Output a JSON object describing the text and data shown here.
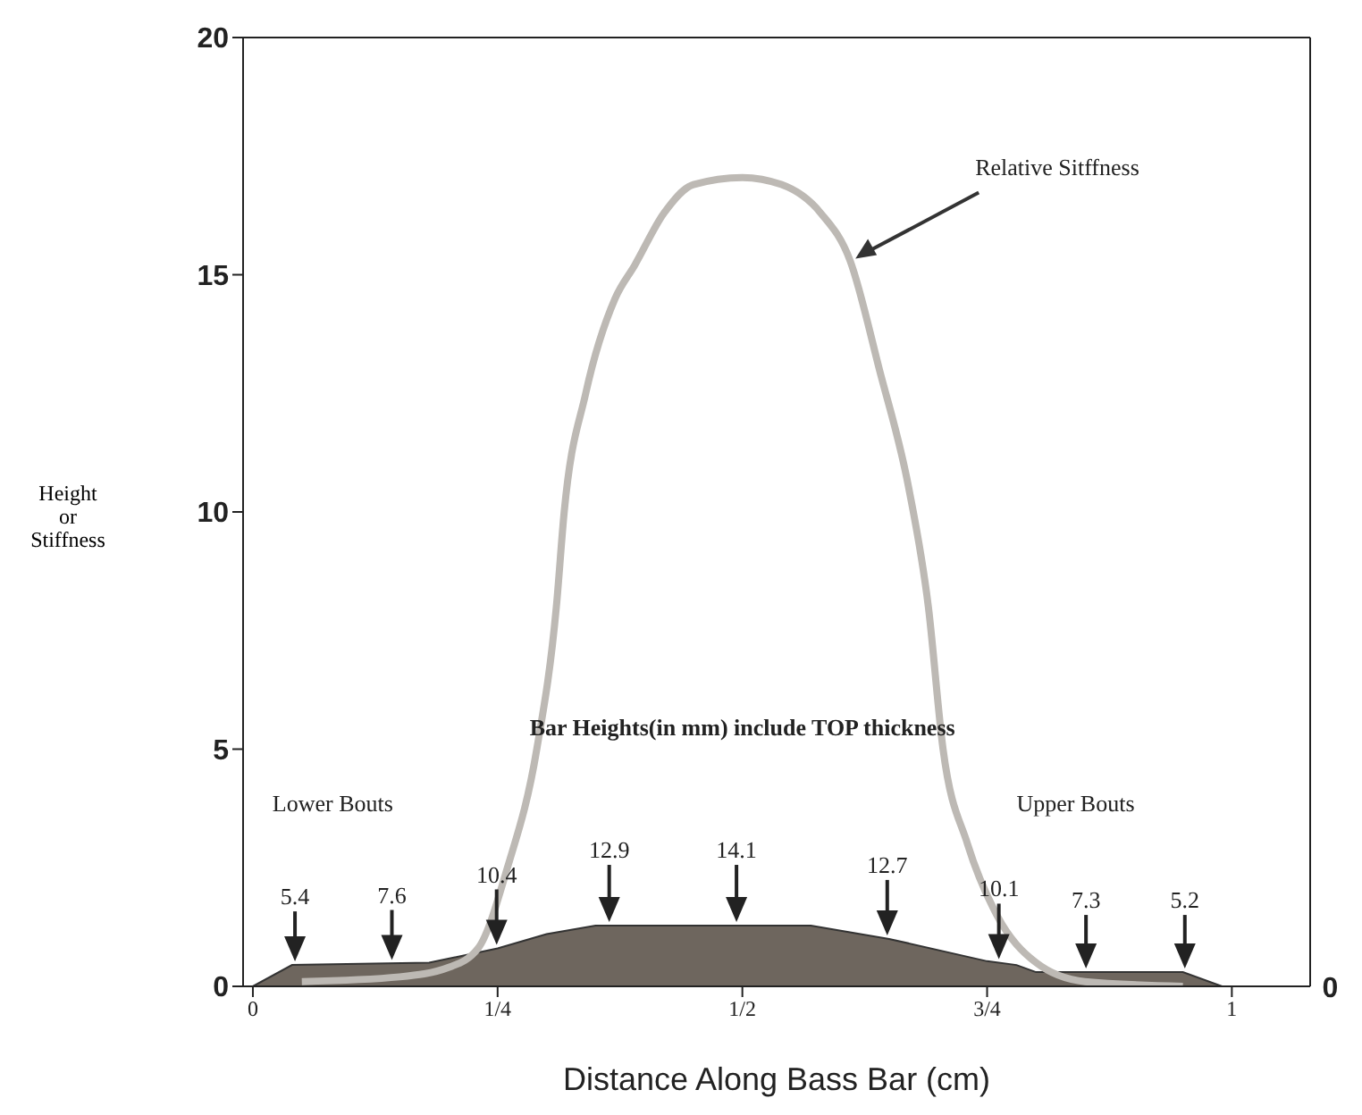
{
  "chart_data": {
    "type": "line",
    "xlabel": "Distance Along Bass Bar (cm)",
    "ylabel": "Height or Stiffness",
    "xlim": [
      -0.01,
      1.08
    ],
    "xticks": [
      0,
      {
        "value": 0.25,
        "label": "1/4"
      },
      {
        "value": 0.5,
        "label": "1/2"
      },
      {
        "value": 0.75,
        "label": "3/4"
      },
      1
    ],
    "ylim": [
      0,
      20
    ],
    "yticks": [
      0,
      5,
      10,
      15,
      20
    ],
    "series": [
      {
        "type": "area",
        "color": "#6e665e",
        "x": [
          0,
          0.04,
          0.18,
          0.25,
          0.3,
          0.35,
          0.57,
          0.65,
          0.75,
          0.78,
          0.8,
          0.95,
          0.99
        ],
        "values": [
          0,
          0.45,
          0.5,
          0.8,
          1.1,
          1.28,
          1.28,
          1.0,
          0.53,
          0.45,
          0.3,
          0.3,
          0
        ]
      },
      {
        "name": "Relative Sitffness",
        "color": "#bdb9b4",
        "x": [
          0.05,
          0.15,
          0.2,
          0.23,
          0.26,
          0.29,
          0.31,
          0.318,
          0.34,
          0.37,
          0.39,
          0.42,
          0.45,
          0.5,
          0.54,
          0.58,
          0.61,
          0.64,
          0.67,
          0.69,
          0.705,
          0.73,
          0.76,
          0.8,
          0.85,
          0.95
        ],
        "values": [
          0.1,
          0.2,
          0.4,
          0.8,
          2.5,
          5,
          8,
          10,
          12.5,
          14.5,
          15.2,
          16.3,
          16.9,
          17.05,
          16.9,
          16.3,
          15.3,
          13,
          10.5,
          8,
          5,
          3,
          1.5,
          0.5,
          0.1,
          0
        ]
      }
    ],
    "annotations": [
      "Bar Heights(in mm) include TOP thickness",
      "Lower Bouts",
      "Upper Bouts",
      "0",
      {
        "text": "5.4",
        "x": 0.043,
        "y": 0.45
      },
      {
        "text": "7.6",
        "x": 0.142,
        "y": 0.48
      },
      {
        "text": "10.4",
        "x": 0.249,
        "y": 0.8
      },
      {
        "text": "12.9",
        "x": 0.364,
        "y": 1.28
      },
      {
        "text": "14.1",
        "x": 0.494,
        "y": 1.28
      },
      {
        "text": "12.7",
        "x": 0.648,
        "y": 1.0
      },
      {
        "text": "10.1",
        "x": 0.762,
        "y": 0.5
      },
      {
        "text": "7.3",
        "x": 0.851,
        "y": 0.3
      },
      {
        "text": "5.2",
        "x": 0.952,
        "y": 0.3
      }
    ]
  }
}
